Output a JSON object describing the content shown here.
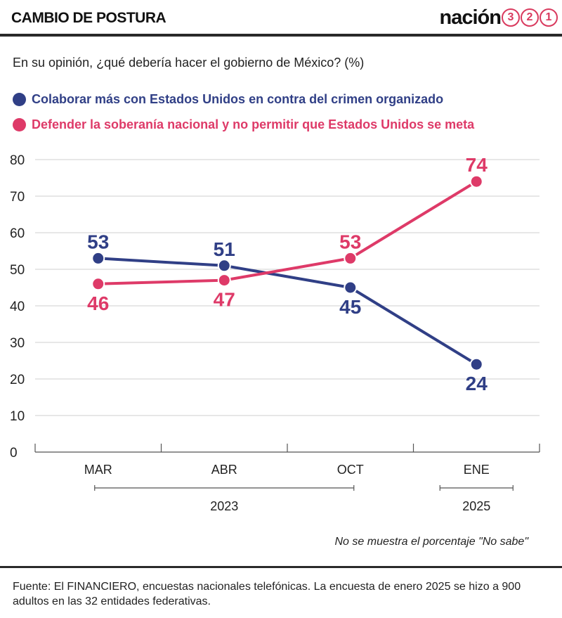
{
  "header": {
    "kicker": "CAMBIO DE POSTURA",
    "brand_word": "nación",
    "brand_digits": [
      "3",
      "2",
      "1"
    ]
  },
  "question": "En su opinión, ¿qué debería hacer el gobierno de México? (%)",
  "note": "No se muestra el porcentaje \"No sabe\"",
  "source": "Fuente: El FINANCIERO, encuestas nacionales telefónicas. La encuesta de enero 2025 se hizo a 900 adultos en las 32 entidades federativas.",
  "colors": {
    "blue": "#303f86",
    "pink": "#de3a68",
    "grid": "#cfcfcf",
    "axis": "#555555"
  },
  "chart_data": {
    "type": "line",
    "categories": [
      "MAR",
      "ABR",
      "OCT",
      "ENE"
    ],
    "year_groups": [
      {
        "label": "2023",
        "categories": [
          "MAR",
          "ABR",
          "OCT"
        ]
      },
      {
        "label": "2025",
        "categories": [
          "ENE"
        ]
      }
    ],
    "ylim": [
      0,
      80
    ],
    "yticks": [
      0,
      10,
      20,
      30,
      40,
      50,
      60,
      70,
      80
    ],
    "grid": true,
    "legend_position": "top-left",
    "series": [
      {
        "name": "Colaborar más con Estados Unidos en contra del crimen organizado",
        "color": "#303f86",
        "values": [
          53,
          51,
          45,
          24
        ]
      },
      {
        "name": "Defender la soberanía nacional  y no  permitir que Estados Unidos se meta",
        "color": "#de3a68",
        "values": [
          46,
          47,
          53,
          74
        ]
      }
    ]
  }
}
